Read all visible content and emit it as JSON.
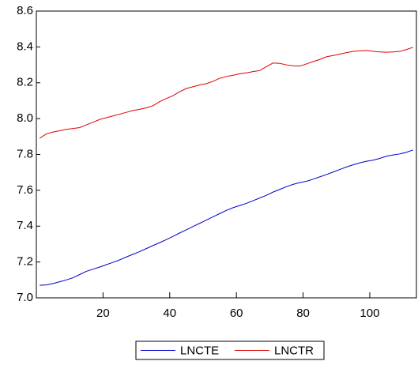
{
  "chart_data": {
    "type": "line",
    "x": [
      1,
      3,
      5,
      7,
      9,
      11,
      13,
      15,
      17,
      19,
      21,
      23,
      25,
      27,
      29,
      31,
      33,
      35,
      37,
      39,
      41,
      43,
      45,
      47,
      49,
      51,
      53,
      55,
      57,
      59,
      61,
      63,
      65,
      67,
      69,
      71,
      73,
      75,
      77,
      79,
      81,
      83,
      85,
      87,
      89,
      91,
      93,
      95,
      97,
      99,
      101,
      103,
      105,
      107,
      109,
      111,
      113
    ],
    "series": [
      {
        "name": "LNCTE",
        "color": "#0000cc",
        "values": [
          7.07,
          7.072,
          7.08,
          7.09,
          7.1,
          7.112,
          7.13,
          7.148,
          7.16,
          7.172,
          7.185,
          7.198,
          7.212,
          7.228,
          7.243,
          7.258,
          7.275,
          7.292,
          7.308,
          7.325,
          7.343,
          7.362,
          7.38,
          7.398,
          7.416,
          7.434,
          7.452,
          7.47,
          7.488,
          7.503,
          7.515,
          7.527,
          7.542,
          7.557,
          7.572,
          7.59,
          7.605,
          7.62,
          7.633,
          7.643,
          7.65,
          7.662,
          7.675,
          7.688,
          7.702,
          7.716,
          7.73,
          7.742,
          7.753,
          7.762,
          7.768,
          7.778,
          7.79,
          7.797,
          7.803,
          7.812,
          7.825
        ]
      },
      {
        "name": "LNCTR",
        "color": "#dd0000",
        "values": [
          7.89,
          7.915,
          7.925,
          7.932,
          7.94,
          7.945,
          7.95,
          7.965,
          7.98,
          7.995,
          8.005,
          8.015,
          8.025,
          8.035,
          8.045,
          8.052,
          8.06,
          8.072,
          8.095,
          8.112,
          8.128,
          8.15,
          8.168,
          8.178,
          8.188,
          8.195,
          8.208,
          8.225,
          8.235,
          8.242,
          8.25,
          8.255,
          8.262,
          8.268,
          8.29,
          8.31,
          8.308,
          8.3,
          8.295,
          8.293,
          8.305,
          8.318,
          8.33,
          8.345,
          8.352,
          8.36,
          8.368,
          8.375,
          8.378,
          8.38,
          8.376,
          8.372,
          8.37,
          8.372,
          8.375,
          8.385,
          8.398
        ]
      }
    ],
    "xlim": [
      0,
      114
    ],
    "xticks": [
      20,
      40,
      60,
      80,
      100
    ],
    "ylim": [
      7.0,
      8.6
    ],
    "yticks": [
      {
        "value": 7.0,
        "label": "7.0"
      },
      7.2,
      7.4,
      7.6,
      7.8,
      {
        "value": 8.0,
        "label": "8.0"
      },
      8.2,
      8.4,
      8.6
    ],
    "grid": false,
    "legend": "bottom"
  }
}
